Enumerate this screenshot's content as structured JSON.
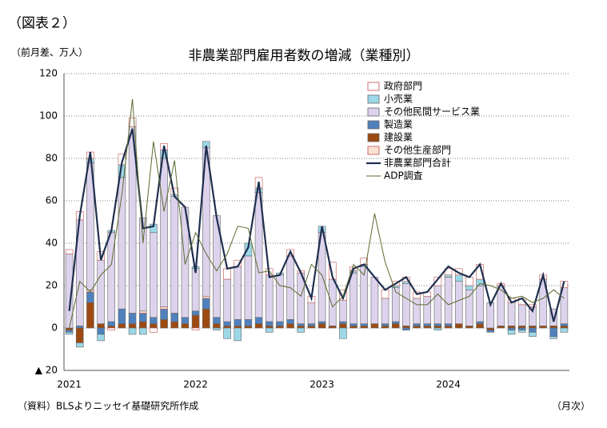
{
  "figure_label": "（図表２）",
  "chart_data": {
    "type": "bar",
    "title": "非農業部門雇用者数の増減（業種別）",
    "y_label": "（前月差、万人）",
    "x_label": "（月次）",
    "source": "（資料）BLSよりニッセイ基礎研究所作成",
    "categories": [
      "2021",
      null,
      null,
      null,
      null,
      null,
      null,
      null,
      null,
      null,
      null,
      null,
      "2022",
      null,
      null,
      null,
      null,
      null,
      null,
      null,
      null,
      null,
      null,
      null,
      "2023",
      null,
      null,
      null,
      null,
      null,
      null,
      null,
      null,
      null,
      null,
      null,
      "2024",
      null,
      null,
      null,
      null,
      null,
      null,
      null,
      null,
      null,
      null,
      null
    ],
    "ylim": [
      -20,
      120
    ],
    "yticks": [
      {
        "value": -20,
        "label": "▲ 20"
      },
      0,
      20,
      40,
      60,
      80,
      100,
      120
    ],
    "grid": true,
    "legend": "upper right",
    "series": [
      {
        "name": "政府部門",
        "type": "bar",
        "color": "#ffffff",
        "values": [
          2,
          4,
          3,
          4,
          -1,
          5,
          4,
          0,
          -2,
          3,
          3,
          0,
          -1,
          0,
          0,
          5,
          3,
          0,
          5,
          3,
          0,
          3,
          1,
          3,
          0,
          8,
          5,
          2,
          3,
          0,
          4,
          2,
          2,
          3,
          2,
          4,
          3,
          3,
          4,
          7,
          0,
          1,
          2,
          3,
          1,
          2,
          0,
          3
        ]
      },
      {
        "name": "小売業",
        "type": "bar",
        "color": "#9cd8e8",
        "values": [
          -1,
          -2,
          2,
          -3,
          1,
          6,
          -3,
          -3,
          4,
          4,
          1,
          0,
          1,
          3,
          -1,
          -5,
          -6,
          6,
          2,
          -2,
          1,
          0,
          -2,
          0,
          3,
          0,
          -5,
          1,
          1,
          0,
          0,
          1,
          1,
          0,
          0,
          -1,
          1,
          3,
          2,
          3,
          0,
          0,
          -2,
          -1,
          -2,
          0,
          -1,
          -2
        ]
      },
      {
        "name": "その他民間サービス業",
        "type": "bar",
        "color": "#ddd3ec",
        "values": [
          35,
          50,
          60,
          30,
          42,
          62,
          88,
          44,
          40,
          70,
          55,
          52,
          20,
          70,
          48,
          20,
          25,
          30,
          59,
          22,
          22,
          30,
          24,
          10,
          42,
          22,
          10,
          24,
          27,
          22,
          12,
          16,
          20,
          12,
          13,
          18,
          22,
          20,
          17,
          17,
          12,
          19,
          11,
          10,
          9,
          22,
          8,
          17
        ]
      },
      {
        "name": "製造業",
        "type": "bar",
        "color": "#4f81bd",
        "values": [
          -1,
          1,
          5,
          -3,
          2,
          7,
          5,
          4,
          3,
          5,
          4,
          3,
          2,
          5,
          3,
          2,
          3,
          3,
          3,
          2,
          2,
          2,
          1,
          1,
          1,
          0,
          1,
          1,
          1,
          0,
          1,
          1,
          -1,
          1,
          1,
          1,
          1,
          0,
          0,
          1,
          -1,
          0,
          -1,
          -1,
          -2,
          0,
          -4,
          1
        ]
      },
      {
        "name": "建設業",
        "type": "bar",
        "color": "#9c4a12",
        "values": [
          -1,
          -7,
          12,
          2,
          1,
          2,
          2,
          3,
          2,
          4,
          3,
          2,
          6,
          9,
          2,
          1,
          1,
          1,
          2,
          1,
          1,
          2,
          1,
          1,
          2,
          1,
          2,
          1,
          1,
          2,
          1,
          2,
          1,
          1,
          1,
          1,
          1,
          2,
          1,
          2,
          -1,
          1,
          1,
          1,
          1,
          1,
          1,
          1
        ]
      },
      {
        "name": "その他生産部門",
        "type": "bar",
        "color": "#fbe3d4",
        "values": [
          0,
          0,
          1,
          0,
          0,
          0,
          0,
          1,
          0,
          1,
          0,
          0,
          0,
          1,
          0,
          0,
          0,
          0,
          0,
          0,
          0,
          0,
          0,
          0,
          0,
          0,
          0,
          0,
          0,
          0,
          0,
          0,
          0,
          0,
          0,
          0,
          0,
          0,
          0,
          0,
          0,
          0,
          0,
          0,
          0,
          0,
          0,
          0
        ]
      },
      {
        "name": "非農業部門合計",
        "type": "line",
        "color": "#1f2f4f",
        "values": [
          8,
          53,
          83,
          32,
          46,
          78,
          94,
          47,
          48,
          86,
          62,
          57,
          26,
          86,
          52,
          28,
          29,
          38,
          69,
          24,
          25,
          36,
          26,
          14,
          48,
          24,
          14,
          28,
          30,
          24,
          18,
          21,
          24,
          16,
          17,
          23,
          29,
          26,
          24,
          30,
          11,
          21,
          12,
          14,
          8,
          25,
          3,
          22
        ]
      },
      {
        "name": "ADP調査",
        "type": "line",
        "color": "#5b6b2f",
        "values": [
          0,
          22,
          17,
          25,
          30,
          63,
          108,
          40,
          88,
          55,
          79,
          30,
          45,
          35,
          27,
          35,
          48,
          47,
          26,
          27,
          20,
          19,
          15,
          30,
          25,
          10,
          15,
          30,
          25,
          54,
          31,
          17,
          14,
          11,
          11,
          16,
          11,
          13,
          15,
          21,
          20,
          18,
          14,
          15,
          12,
          14,
          18,
          14
        ]
      }
    ]
  }
}
